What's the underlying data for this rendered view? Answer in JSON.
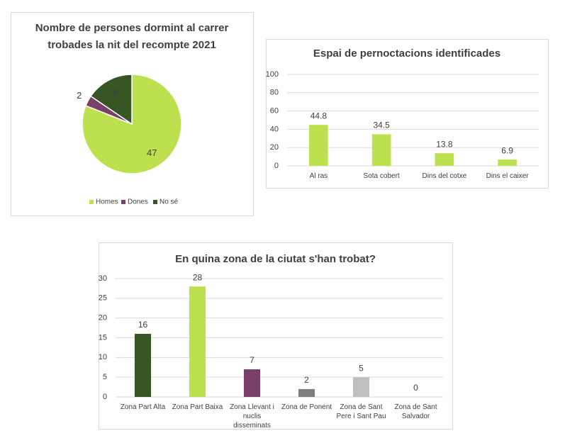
{
  "chart_data": [
    {
      "type": "pie",
      "title": "Nombre de persones dormint al carrer trobades la nit del recompte 2021",
      "categories": [
        "Homes",
        "Dones",
        "No sé"
      ],
      "values": [
        47,
        2,
        9
      ],
      "colors": [
        "#bde04f",
        "#7b3f6c",
        "#375623"
      ],
      "legend": "bottom"
    },
    {
      "type": "bar",
      "title": "Espai de pernoctacions identificades",
      "categories": [
        "Al ras",
        "Sota cobert",
        "Dins del cotxe",
        "Dins el caixer"
      ],
      "values": [
        44.8,
        34.5,
        13.8,
        6.9
      ],
      "colors": [
        "#bde04f",
        "#bde04f",
        "#bde04f",
        "#bde04f"
      ],
      "ylim": [
        0,
        100
      ],
      "yticks": [
        0,
        20,
        40,
        60,
        80,
        100
      ],
      "grid": true
    },
    {
      "type": "bar",
      "title": "En quina zona de la ciutat s'han trobat?",
      "categories": [
        "Zona Part Alta",
        "Zona Part Baixa",
        "Zona Llevant i nuclis disseminats",
        "Zona de Ponent",
        "Zona de Sant Pere i Sant Pau",
        "Zona de Sant Salvador"
      ],
      "values": [
        16,
        28,
        7,
        2,
        5,
        0
      ],
      "colors": [
        "#375623",
        "#bde04f",
        "#7b3f6c",
        "#7f7f7f",
        "#bfbfbf",
        "#bfbfbf"
      ],
      "ylim": [
        0,
        30
      ],
      "yticks": [
        0,
        5,
        10,
        15,
        20,
        25,
        30
      ],
      "grid": true
    }
  ]
}
